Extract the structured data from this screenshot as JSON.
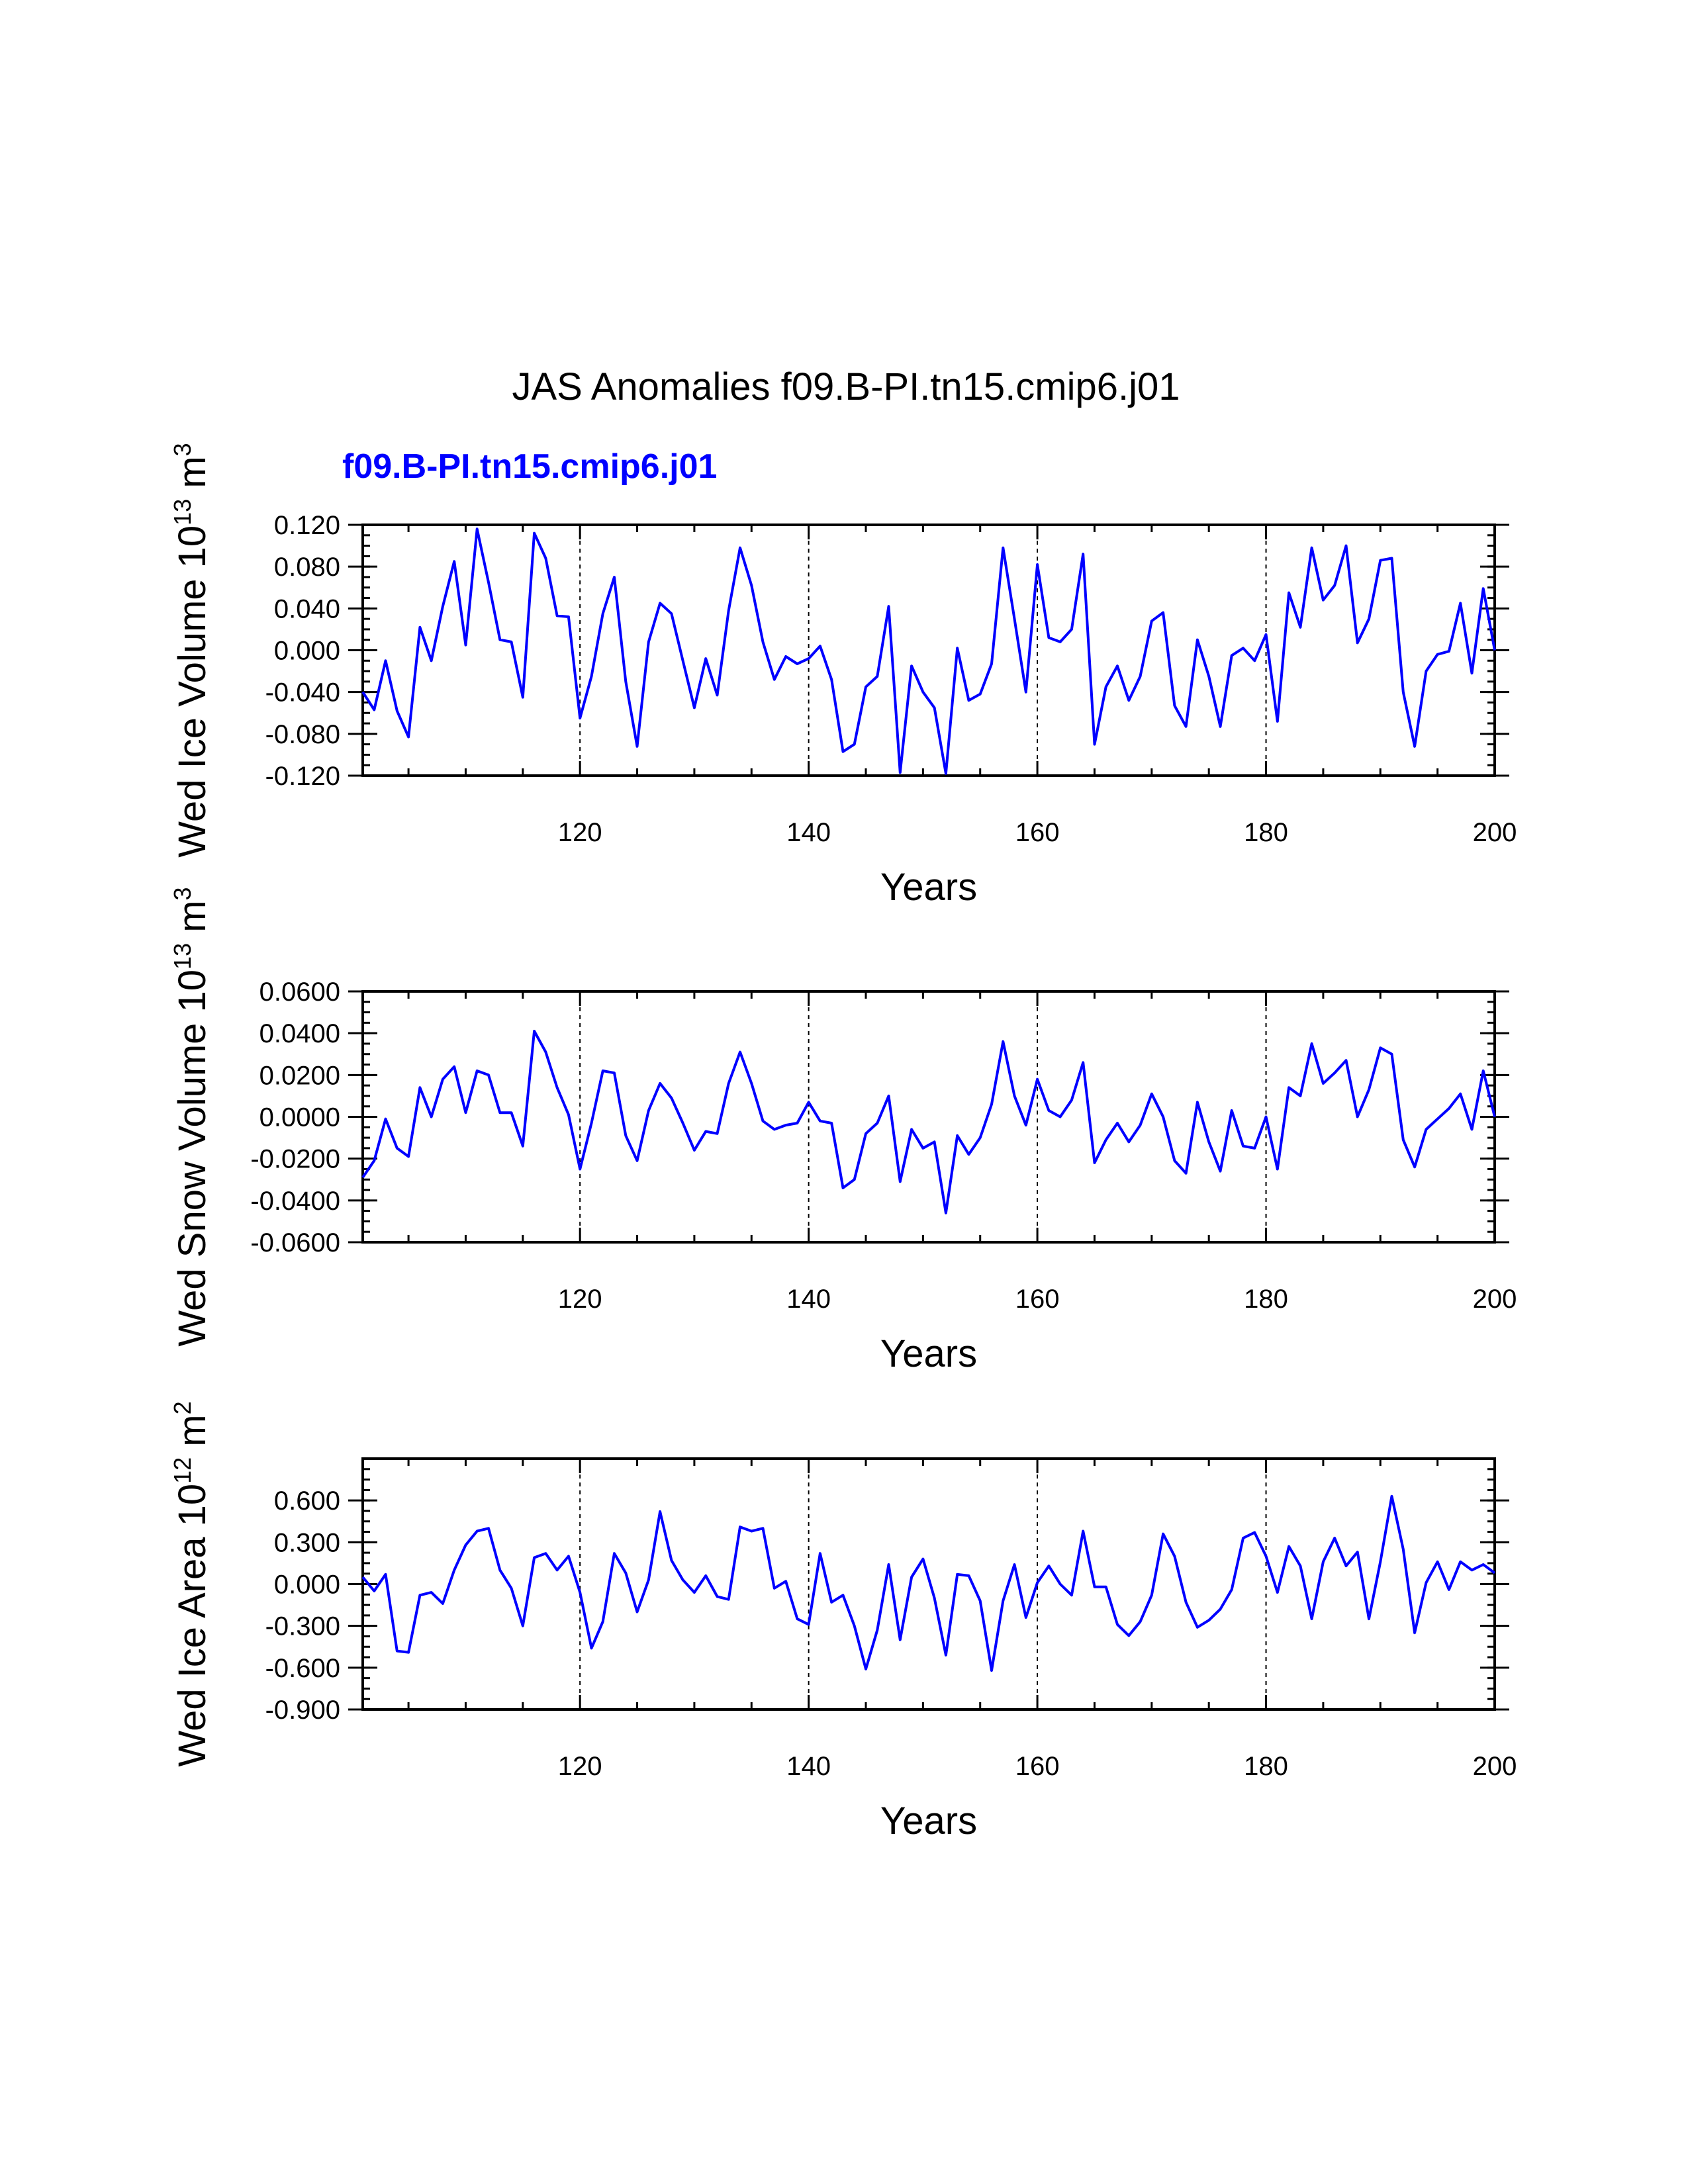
{
  "title": "JAS Anomalies f09.B-PI.tn15.cmip6.j01",
  "subtitle": "f09.B-PI.tn15.cmip6.j01",
  "colors": {
    "line": "#0000ff",
    "subtitle": "#0000ff",
    "axis": "#000000"
  },
  "chart_data": [
    {
      "type": "line",
      "ylabel": "Wed Ice Volume 10",
      "ylabel_exp": "13",
      "ylabel_unit": " m",
      "ylabel_unit_exp": "3",
      "xlabel": "Years",
      "xlim": [
        101,
        200
      ],
      "ylim": [
        -0.12,
        0.12
      ],
      "xticks": [
        120,
        140,
        160,
        180,
        200
      ],
      "xtick_labels": [
        "120",
        "140",
        "160",
        "180",
        "200"
      ],
      "yticks": [
        -0.12,
        -0.08,
        -0.04,
        0,
        0.04,
        0.08,
        0.12
      ],
      "ytick_labels": [
        "-0.120",
        "-0.080",
        "-0.040",
        "0.000",
        "0.040",
        "0.080",
        "0.120"
      ],
      "y_minor_step": 0.01,
      "vlines": [
        120,
        140,
        160,
        180
      ],
      "x_start": 101,
      "values": [
        -0.04,
        -0.057,
        -0.01,
        -0.058,
        -0.083,
        0.022,
        -0.01,
        0.042,
        0.085,
        0.005,
        0.116,
        0.065,
        0.01,
        0.008,
        -0.045,
        0.112,
        0.088,
        0.033,
        0.032,
        -0.065,
        -0.025,
        0.035,
        0.07,
        -0.03,
        -0.092,
        0.008,
        0.045,
        0.035,
        -0.01,
        -0.055,
        -0.008,
        -0.043,
        0.038,
        0.098,
        0.062,
        0.008,
        -0.028,
        -0.006,
        -0.013,
        -0.008,
        0.004,
        -0.028,
        -0.097,
        -0.09,
        -0.035,
        -0.025,
        0.042,
        -0.117,
        -0.015,
        -0.04,
        -0.055,
        -0.118,
        0.002,
        -0.048,
        -0.042,
        -0.013,
        0.098,
        0.03,
        -0.04,
        0.082,
        0.012,
        0.008,
        0.02,
        0.092,
        -0.09,
        -0.035,
        -0.015,
        -0.048,
        -0.025,
        0.028,
        0.036,
        -0.053,
        -0.073,
        0.01,
        -0.025,
        -0.073,
        -0.005,
        0.002,
        -0.01,
        0.015,
        -0.068,
        0.055,
        0.022,
        0.098,
        0.048,
        0.062,
        0.1,
        0.007,
        0.03,
        0.086,
        0.088,
        -0.04,
        -0.092,
        -0.02,
        -0.004,
        -0.001,
        0.045,
        -0.022,
        0.059,
        0
      ]
    },
    {
      "type": "line",
      "ylabel": "Wed Snow Volume 10",
      "ylabel_exp": "13",
      "ylabel_unit": " m",
      "ylabel_unit_exp": "3",
      "xlabel": "Years",
      "xlim": [
        101,
        200
      ],
      "ylim": [
        -0.06,
        0.06
      ],
      "xticks": [
        120,
        140,
        160,
        180,
        200
      ],
      "xtick_labels": [
        "120",
        "140",
        "160",
        "180",
        "200"
      ],
      "yticks": [
        -0.06,
        -0.04,
        -0.02,
        0,
        0.02,
        0.04,
        0.06
      ],
      "ytick_labels": [
        "-0.0600",
        "-0.0400",
        "-0.0200",
        "0.0000",
        "0.0200",
        "0.0400",
        "0.0600"
      ],
      "y_minor_step": 0.005,
      "vlines": [
        120,
        140,
        160,
        180
      ],
      "x_start": 101,
      "values": [
        -0.029,
        -0.021,
        -0.001,
        -0.015,
        -0.019,
        0.014,
        0,
        0.018,
        0.024,
        0.002,
        0.022,
        0.02,
        0.002,
        0.002,
        -0.014,
        0.041,
        0.031,
        0.014,
        0.001,
        -0.025,
        -0.003,
        0.022,
        0.021,
        -0.009,
        -0.021,
        0.003,
        0.016,
        0.009,
        -0.003,
        -0.016,
        -0.007,
        -0.008,
        0.016,
        0.031,
        0.016,
        -0.002,
        -0.006,
        -0.004,
        -0.003,
        0.007,
        -0.002,
        -0.003,
        -0.034,
        -0.03,
        -0.008,
        -0.003,
        0.01,
        -0.031,
        -0.006,
        -0.015,
        -0.012,
        -0.046,
        -0.009,
        -0.018,
        -0.01,
        0.006,
        0.036,
        0.01,
        -0.004,
        0.018,
        0.003,
        0,
        0.008,
        0.026,
        -0.022,
        -0.011,
        -0.003,
        -0.012,
        -0.004,
        0.011,
        0,
        -0.021,
        -0.027,
        0.007,
        -0.012,
        -0.026,
        0.003,
        -0.014,
        -0.015,
        0,
        -0.025,
        0.014,
        0.01,
        0.035,
        0.016,
        0.021,
        0.027,
        0,
        0.013,
        0.033,
        0.03,
        -0.011,
        -0.024,
        -0.006,
        -0.001,
        0.004,
        0.011,
        -0.006,
        0.022,
        0
      ]
    },
    {
      "type": "line",
      "ylabel": "Wed Ice Area 10",
      "ylabel_exp": "12",
      "ylabel_unit": " m",
      "ylabel_unit_exp": "2",
      "xlabel": "Years",
      "xlim": [
        101,
        200
      ],
      "ylim": [
        -0.9,
        0.9
      ],
      "xticks": [
        120,
        140,
        160,
        180,
        200
      ],
      "xtick_labels": [
        "120",
        "140",
        "160",
        "180",
        "200"
      ],
      "yticks": [
        -0.9,
        -0.6,
        -0.3,
        0,
        0.3,
        0.6
      ],
      "ytick_labels": [
        "-0.900",
        "-0.600",
        "-0.300",
        "0.000",
        "0.300",
        "0.600"
      ],
      "y_minor_step": 0.075,
      "vlines": [
        120,
        140,
        160,
        180
      ],
      "x_start": 101,
      "values": [
        0.05,
        -0.05,
        0.07,
        -0.48,
        -0.49,
        -0.08,
        -0.06,
        -0.14,
        0.1,
        0.28,
        0.38,
        0.4,
        0.1,
        -0.03,
        -0.3,
        0.19,
        0.22,
        0.1,
        0.2,
        -0.06,
        -0.46,
        -0.27,
        0.22,
        0.08,
        -0.2,
        0.03,
        0.52,
        0.17,
        0.03,
        -0.06,
        0.06,
        -0.09,
        -0.11,
        0.41,
        0.38,
        0.4,
        -0.03,
        0.02,
        -0.25,
        -0.29,
        0.22,
        -0.13,
        -0.08,
        -0.3,
        -0.61,
        -0.33,
        0.14,
        -0.4,
        0.05,
        0.18,
        -0.1,
        -0.51,
        0.07,
        0.06,
        -0.12,
        -0.62,
        -0.12,
        0.14,
        -0.24,
        0.01,
        0.13,
        0,
        -0.08,
        0.38,
        -0.02,
        -0.02,
        -0.29,
        -0.37,
        -0.27,
        -0.08,
        0.36,
        0.2,
        -0.13,
        -0.31,
        -0.26,
        -0.18,
        -0.04,
        0.33,
        0.37,
        0.2,
        -0.06,
        0.27,
        0.13,
        -0.25,
        0.16,
        0.33,
        0.13,
        0.23,
        -0.25,
        0.16,
        0.63,
        0.25,
        -0.35,
        0.01,
        0.16,
        -0.04,
        0.16,
        0.1,
        0.14,
        0.08
      ]
    }
  ]
}
